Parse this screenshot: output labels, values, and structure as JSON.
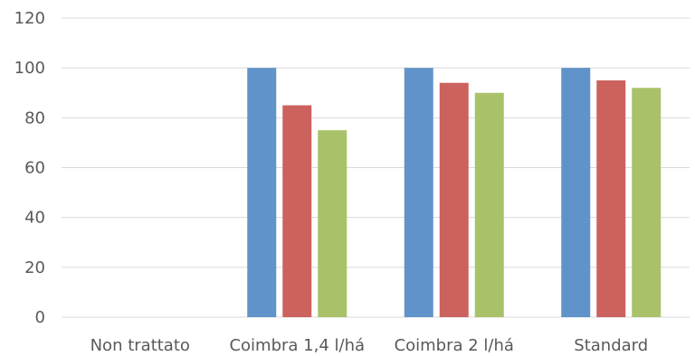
{
  "chart_data": {
    "type": "bar",
    "categories": [
      "Non trattato",
      "Coimbra 1,4 l/há",
      "Coimbra 2 l/há",
      "Standard"
    ],
    "series": [
      {
        "values": [
          null,
          100,
          100,
          100
        ],
        "color": "#5f93c9"
      },
      {
        "values": [
          null,
          85,
          94,
          95
        ],
        "color": "#cc625d"
      },
      {
        "values": [
          null,
          75,
          90,
          92
        ],
        "color": "#a9c26a"
      }
    ],
    "yticks": [
      0,
      20,
      40,
      60,
      80,
      100,
      120
    ],
    "ylim": [
      0,
      120
    ],
    "grid": true,
    "legend": "none",
    "title": "",
    "xlabel": "",
    "ylabel": ""
  }
}
